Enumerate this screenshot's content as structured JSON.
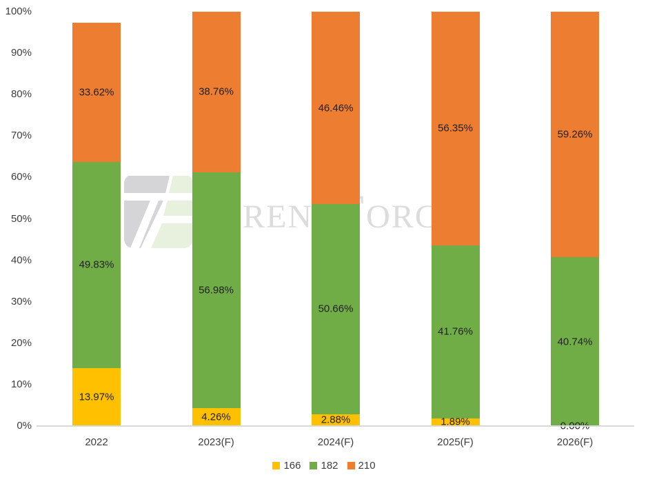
{
  "watermark": {
    "brand": "TrendForce",
    "logo": "trendforce-tf-logo",
    "text_color": "#dcdcdc",
    "logo_gray": "#d5d5d7",
    "logo_green": "#e8f1de"
  },
  "legend": [
    {
      "label": "166",
      "color": "#FFC000"
    },
    {
      "label": "182",
      "color": "#70AD47"
    },
    {
      "label": "210",
      "color": "#ED7D31"
    }
  ],
  "chart_data": {
    "type": "bar",
    "subtype": "stacked-100",
    "title": "",
    "xlabel": "",
    "ylabel": "",
    "ylim": [
      0,
      100
    ],
    "grid": false,
    "legend_position": "bottom",
    "categories": [
      "2022",
      "2023(F)",
      "2024(F)",
      "2025(F)",
      "2026(F)"
    ],
    "y_tick_labels": [
      "0%",
      "10%",
      "20%",
      "30%",
      "40%",
      "50%",
      "60%",
      "70%",
      "80%",
      "90%",
      "100%"
    ],
    "series": [
      {
        "name": "166",
        "color": "#FFC000",
        "values": [
          13.97,
          4.26,
          2.88,
          1.89,
          0.0
        ],
        "labels": [
          "13.97%",
          "4.26%",
          "2.88%",
          "1.89%",
          "0.00%"
        ]
      },
      {
        "name": "182",
        "color": "#70AD47",
        "values": [
          49.83,
          56.98,
          50.66,
          41.76,
          40.74
        ],
        "labels": [
          "49.83%",
          "56.98%",
          "50.66%",
          "41.76%",
          "40.74%"
        ]
      },
      {
        "name": "210",
        "color": "#ED7D31",
        "values": [
          33.62,
          38.76,
          46.46,
          56.35,
          59.26
        ],
        "labels": [
          "33.62%",
          "38.76%",
          "46.46%",
          "56.35%",
          "59.26%"
        ]
      }
    ]
  }
}
